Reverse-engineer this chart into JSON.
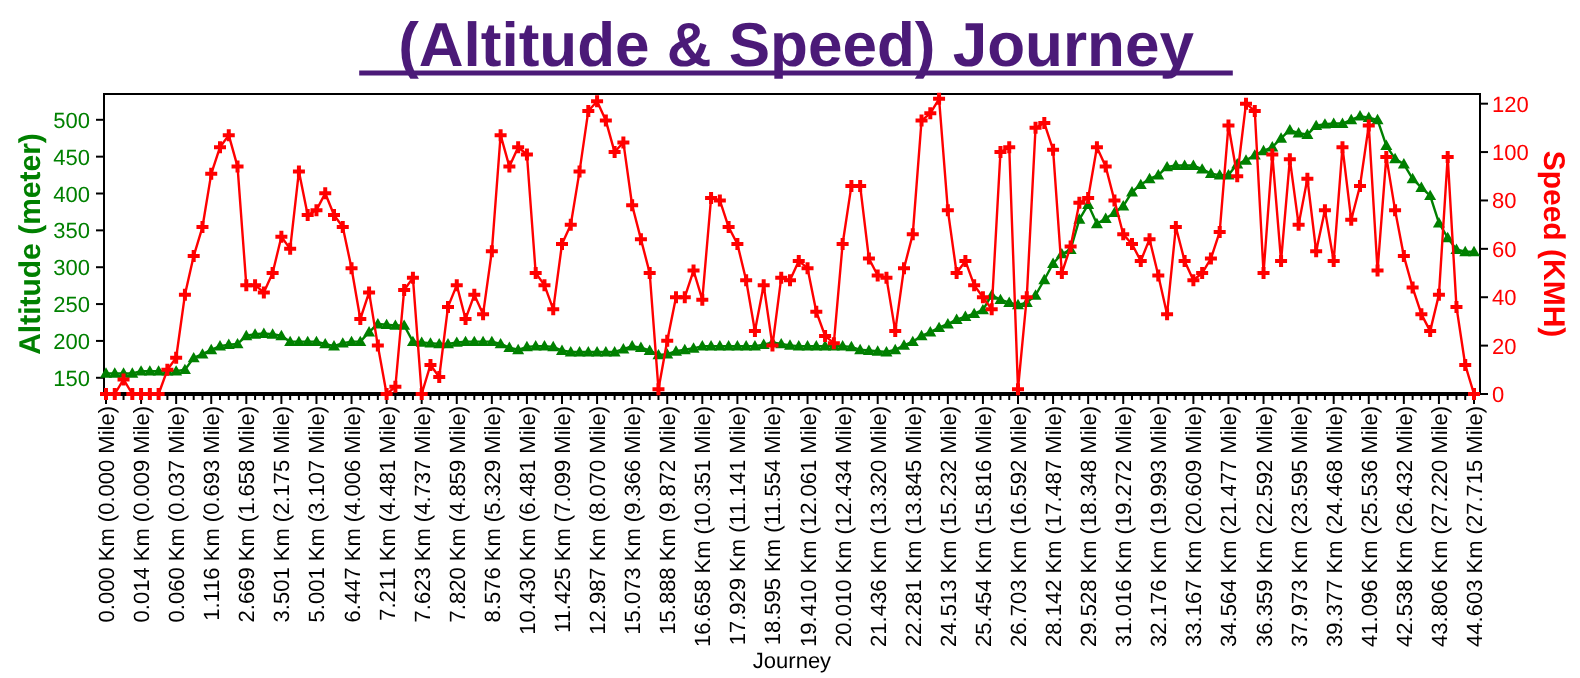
{
  "chart_data": {
    "type": "line",
    "title": "(Altitude & Speed) Journey",
    "xlabel": "Journey",
    "ylabel": "Altitude (meter)",
    "y2label": "Speed (KMH)",
    "categories": [
      "0.000 Km (0.000 Mile)",
      null,
      null,
      null,
      "0.014 Km (0.009 Mile)",
      null,
      null,
      null,
      "0.060 Km (0.037 Mile)",
      null,
      null,
      null,
      "1.116 Km (0.693 Mile)",
      null,
      null,
      null,
      "2.669 Km (1.658 Mile)",
      null,
      null,
      null,
      "3.501 Km (2.175 Mile)",
      null,
      null,
      null,
      "5.001 Km (3.107 Mile)",
      null,
      null,
      null,
      "6.447 Km (4.006 Mile)",
      null,
      null,
      null,
      "7.211 Km (4.481 Mile)",
      null,
      null,
      null,
      "7.623 Km (4.737 Mile)",
      null,
      null,
      null,
      "7.820 Km (4.859 Mile)",
      null,
      null,
      null,
      "8.576 Km (5.329 Mile)",
      null,
      null,
      null,
      "10.430 Km (6.481 Mile)",
      null,
      null,
      null,
      "11.425 Km (7.099 Mile)",
      null,
      null,
      null,
      "12.987 Km (8.070 Mile)",
      null,
      null,
      null,
      "15.073 Km (9.366 Mile)",
      null,
      null,
      null,
      "15.888 Km (9.872 Mile)",
      null,
      null,
      null,
      "16.658 Km (10.351 Mile)",
      null,
      null,
      null,
      "17.929 Km (11.141 Mile)",
      null,
      null,
      null,
      "18.595 Km (11.554 Mile)",
      null,
      null,
      null,
      "19.410 Km (12.061 Mile)",
      null,
      null,
      null,
      "20.010 Km (12.434 Mile)",
      null,
      null,
      null,
      "21.436 Km (13.320 Mile)",
      null,
      null,
      null,
      "22.281 Km (13.845 Mile)",
      null,
      null,
      null,
      "24.513 Km (15.232 Mile)",
      null,
      null,
      null,
      "25.454 Km (15.816 Mile)",
      null,
      null,
      null,
      "26.703 Km (16.592 Mile)",
      null,
      null,
      null,
      "28.142 Km (17.487 Mile)",
      null,
      null,
      null,
      "29.528 Km (18.348 Mile)",
      null,
      null,
      null,
      "31.016 Km (19.272 Mile)",
      null,
      null,
      null,
      "32.176 Km (19.993 Mile)",
      null,
      null,
      null,
      "33.167 Km (20.609 Mile)",
      null,
      null,
      null,
      "34.564 Km (21.477 Mile)",
      null,
      null,
      null,
      "36.359 Km (22.592 Mile)",
      null,
      null,
      null,
      "37.973 Km (23.595 Mile)",
      null,
      null,
      null,
      "39.377 Km (24.468 Mile)",
      null,
      null,
      null,
      "41.096 Km (25.536 Mile)",
      null,
      null,
      null,
      "42.538 Km (26.432 Mile)",
      null,
      null,
      null,
      "43.806 Km (27.220 Mile)",
      null,
      null,
      null,
      "44.603 Km (27.715 Mile)"
    ],
    "series": [
      {
        "color": "#008000",
        "marker": "triangle",
        "values": [
          156,
          156,
          156,
          156,
          159,
          159,
          159,
          159,
          159,
          161,
          177,
          182,
          188,
          193,
          195,
          196,
          207,
          209,
          210,
          209,
          207,
          199,
          199,
          199,
          199,
          196,
          193,
          197,
          199,
          199,
          212,
          223,
          222,
          221,
          221,
          199,
          198,
          197,
          196,
          196,
          198,
          199,
          199,
          199,
          199,
          196,
          191,
          188,
          192,
          193,
          193,
          192,
          187,
          185,
          185,
          185,
          185,
          185,
          185,
          189,
          193,
          191,
          187,
          181,
          182,
          186,
          188,
          190,
          193,
          193,
          193,
          193,
          193,
          193,
          193,
          195,
          198,
          196,
          194,
          193,
          193,
          193,
          193,
          193,
          193,
          192,
          188,
          187,
          186,
          185,
          188,
          194,
          199,
          207,
          212,
          218,
          223,
          229,
          233,
          237,
          242,
          262,
          256,
          252,
          249,
          252,
          262,
          283,
          305,
          318,
          324,
          365,
          385,
          359,
          366,
          374,
          383,
          402,
          412,
          420,
          425,
          436,
          438,
          438,
          438,
          433,
          427,
          425,
          425,
          440,
          445,
          452,
          458,
          463,
          475,
          486,
          482,
          480,
          492,
          494,
          495,
          495,
          500,
          505,
          503,
          500,
          465,
          447,
          440,
          420,
          408,
          397,
          360,
          340,
          324,
          321,
          321
        ]
      },
      {
        "color": "#ff0000",
        "marker": "cross",
        "axis": "y2",
        "values": [
          0,
          0,
          6,
          0,
          0,
          0,
          0,
          10,
          15,
          41,
          57,
          69,
          91,
          102,
          107,
          94,
          45,
          45,
          42,
          50,
          65,
          60,
          92,
          74,
          76,
          83,
          74,
          69,
          52,
          31,
          42,
          20,
          0,
          3,
          43,
          48,
          0,
          12,
          7,
          36,
          45,
          31,
          41,
          33,
          59,
          107,
          94,
          102,
          99,
          50,
          45,
          35,
          62,
          70,
          92,
          117,
          121,
          113,
          100,
          104,
          78,
          64,
          50,
          2,
          22,
          40,
          40,
          51,
          39,
          81,
          80,
          69,
          62,
          47,
          26,
          45,
          20,
          48,
          47,
          55,
          52,
          34,
          24,
          21,
          62,
          86,
          86,
          56,
          49,
          48,
          26,
          52,
          66,
          113,
          116,
          122,
          76,
          50,
          55,
          45,
          40,
          35,
          100,
          102,
          2,
          40,
          110,
          112,
          101,
          50,
          61,
          79,
          81,
          102,
          94,
          80,
          66,
          62,
          55,
          64,
          49,
          33,
          69,
          55,
          47,
          50,
          56,
          67,
          111,
          90,
          120,
          117,
          50,
          99,
          55,
          97,
          70,
          89,
          59,
          76,
          55,
          102,
          72,
          86,
          111,
          51,
          98,
          76,
          57,
          44,
          33,
          26,
          41,
          98,
          36,
          12,
          0
        ]
      }
    ],
    "ylim": [
      128,
      535
    ],
    "yticks": [
      150,
      200,
      250,
      300,
      350,
      400,
      450,
      500
    ],
    "y2lim": [
      0,
      124
    ],
    "y2ticks": [
      0,
      20,
      40,
      60,
      80,
      100,
      120
    ],
    "grid": false
  }
}
